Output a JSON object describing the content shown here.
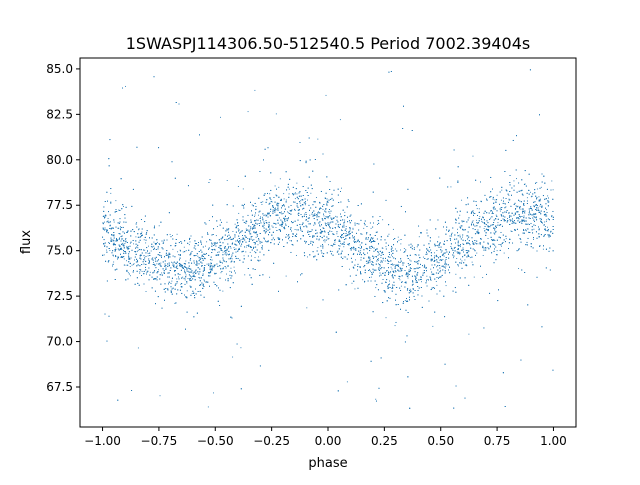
{
  "chart_data": {
    "type": "scatter",
    "title": "1SWASPJ114306.50-512540.5 Period 7002.39404s",
    "xlabel": "phase",
    "ylabel": "flux",
    "xlim": [
      -1.1,
      1.1
    ],
    "ylim": [
      65.3,
      85.6
    ],
    "x_ticks": [
      -1.0,
      -0.75,
      -0.5,
      -0.25,
      0.0,
      0.25,
      0.5,
      0.75,
      1.0
    ],
    "x_tick_labels": [
      "−1.00",
      "−0.75",
      "−0.50",
      "−0.25",
      "0.00",
      "0.25",
      "0.50",
      "0.75",
      "1.00"
    ],
    "y_ticks": [
      67.5,
      70.0,
      72.5,
      75.0,
      77.5,
      80.0,
      82.5,
      85.0
    ],
    "y_tick_labels": [
      "67.5",
      "70.0",
      "72.5",
      "75.0",
      "77.5",
      "80.0",
      "82.5",
      "85.0"
    ],
    "grid": false,
    "legend": "none",
    "point_color": "#1f77b4",
    "series": [
      {
        "x_range": [
          -1.0,
          1.0
        ],
        "approx_points": 9000,
        "profile_phase": [
          -1.0,
          -0.9,
          -0.8,
          -0.7,
          -0.6,
          -0.5,
          -0.4,
          -0.3,
          -0.2,
          -0.1,
          0.0,
          0.1,
          0.2,
          0.3,
          0.4,
          0.5,
          0.6,
          0.7,
          0.8,
          0.9,
          1.0
        ],
        "profile_flux": [
          76.1,
          75.4,
          74.6,
          74.1,
          74.0,
          74.6,
          75.5,
          76.4,
          76.9,
          76.9,
          76.3,
          75.5,
          74.7,
          74.1,
          73.9,
          74.4,
          75.4,
          76.3,
          76.8,
          76.9,
          76.6
        ],
        "scatter_sd": 0.9,
        "outlier_flux_range": [
          66.0,
          85.0
        ]
      }
    ]
  }
}
